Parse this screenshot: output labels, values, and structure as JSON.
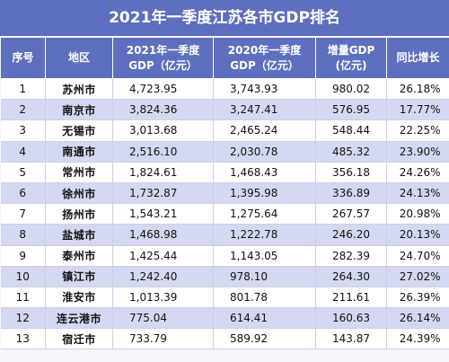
{
  "title": "2021年一季度江苏各市GDP排名",
  "headers": {
    "rank": "序号",
    "region": "地区",
    "gdp2021_l1": "2021年一季度",
    "gdp2021_l2": "GDP（亿元）",
    "gdp2020_l1": "2020年一季度",
    "gdp2020_l2": "GDP（亿元）",
    "increase_l1": "增量GDP",
    "increase_l2": "(亿元)",
    "growth": "同比增长"
  },
  "rows": [
    {
      "rank": "1",
      "city": "苏州市",
      "gdp2021": "4,723.95",
      "gdp2020": "3,743.93",
      "increase": "980.02",
      "growth": "26.18%"
    },
    {
      "rank": "2",
      "city": "南京市",
      "gdp2021": "3,824.36",
      "gdp2020": "3,247.41",
      "increase": "576.95",
      "growth": "17.77%"
    },
    {
      "rank": "3",
      "city": "无锡市",
      "gdp2021": "3,013.68",
      "gdp2020": "2,465.24",
      "increase": "548.44",
      "growth": "22.25%"
    },
    {
      "rank": "4",
      "city": "南通市",
      "gdp2021": "2,516.10",
      "gdp2020": "2,030.78",
      "increase": "485.32",
      "growth": "23.90%"
    },
    {
      "rank": "5",
      "city": "常州市",
      "gdp2021": "1,824.61",
      "gdp2020": "1,468.43",
      "increase": "356.18",
      "growth": "24.26%"
    },
    {
      "rank": "6",
      "city": "徐州市",
      "gdp2021": "1,732.87",
      "gdp2020": "1,395.98",
      "increase": "336.89",
      "growth": "24.13%"
    },
    {
      "rank": "7",
      "city": "扬州市",
      "gdp2021": "1,543.21",
      "gdp2020": "1,275.64",
      "increase": "267.57",
      "growth": "20.98%"
    },
    {
      "rank": "8",
      "city": "盐城市",
      "gdp2021": "1,468.98",
      "gdp2020": "1,222.78",
      "increase": "246.20",
      "growth": "20.13%"
    },
    {
      "rank": "9",
      "city": "泰州市",
      "gdp2021": "1,425.44",
      "gdp2020": "1,143.05",
      "increase": "282.39",
      "growth": "24.70%"
    },
    {
      "rank": "10",
      "city": "镇江市",
      "gdp2021": "1,242.40",
      "gdp2020": "978.10",
      "increase": "264.30",
      "growth": "27.02%"
    },
    {
      "rank": "11",
      "city": "淮安市",
      "gdp2021": "1,013.39",
      "gdp2020": "801.78",
      "increase": "211.61",
      "growth": "26.39%"
    },
    {
      "rank": "12",
      "city": "连云港市",
      "gdp2021": "775.04",
      "gdp2020": "614.41",
      "increase": "160.63",
      "growth": "26.14%"
    },
    {
      "rank": "13",
      "city": "宿迁市",
      "gdp2021": "733.79",
      "gdp2020": "589.92",
      "increase": "143.87",
      "growth": "24.39%"
    }
  ],
  "colors": {
    "header_bg": "#5d6fbe",
    "row_even_bg": "#d4d9f1",
    "row_odd_bg": "#ffffff"
  }
}
